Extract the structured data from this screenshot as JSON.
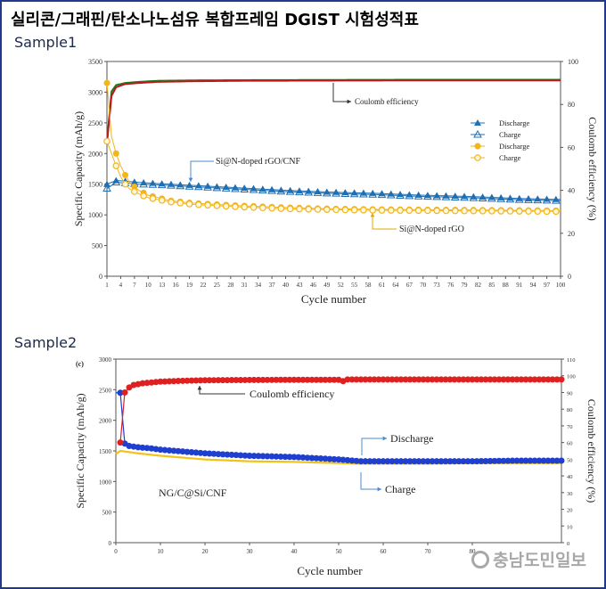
{
  "header": {
    "title": "실리콘/그래핀/탄소나노섬유 복합프레임 DGIST 시험성적표"
  },
  "samples": [
    {
      "label": "Sample1"
    },
    {
      "label": "Sample2"
    }
  ],
  "watermark": {
    "text": "충남도민일보"
  },
  "chart_data": [
    {
      "type": "scatter",
      "title": "",
      "xlabel": "Cycle number",
      "ylabel": "Specific Capacity (mAh/g)",
      "y2label": "Coulomb efficiency (%)",
      "xlim": [
        1,
        100
      ],
      "ylim": [
        0,
        3500
      ],
      "y2lim": [
        0,
        100
      ],
      "x_ticks": [
        "1",
        "4",
        "7",
        "10",
        "13",
        "16",
        "19",
        "22",
        "25",
        "28",
        "31",
        "34",
        "37",
        "40",
        "43",
        "46",
        "49",
        "52",
        "55",
        "58",
        "61",
        "64",
        "67",
        "70",
        "73",
        "76",
        "79",
        "82",
        "85",
        "88",
        "91",
        "94",
        "97",
        "100"
      ],
      "y_ticks": [
        "0",
        "500",
        "1000",
        "1500",
        "2000",
        "2500",
        "3000",
        "3500"
      ],
      "y2_ticks": [
        "0",
        "20",
        "40",
        "60",
        "80",
        "100"
      ],
      "legend": [
        "Discharge",
        "Charge",
        "Discharge",
        "Charge"
      ],
      "legend_position": "right",
      "annotations": [
        "Coulomb efficiency",
        "Si@N-doped rGO/CNF",
        "Si@N-doped rGO"
      ],
      "series": [
        {
          "name": "Discharge",
          "color": "#1f6fb4",
          "marker": "filled-triangle",
          "axis": "left",
          "x": [
            1,
            3,
            5,
            8,
            12,
            20,
            30,
            40,
            50,
            60,
            70,
            80,
            90,
            100
          ],
          "y": [
            1500,
            1560,
            1550,
            1530,
            1510,
            1480,
            1440,
            1400,
            1370,
            1350,
            1320,
            1300,
            1270,
            1250
          ]
        },
        {
          "name": "Charge",
          "color": "#1f6fb4",
          "marker": "open-triangle",
          "axis": "left",
          "x": [
            1,
            3,
            5,
            8,
            12,
            20,
            30,
            40,
            50,
            60,
            70,
            80,
            90,
            100
          ],
          "y": [
            1430,
            1530,
            1520,
            1500,
            1490,
            1460,
            1420,
            1380,
            1350,
            1330,
            1300,
            1280,
            1250,
            1230
          ]
        },
        {
          "name": "Discharge",
          "color": "#f2b51b",
          "marker": "filled-circle",
          "axis": "left",
          "x": [
            1,
            2,
            3,
            4,
            5,
            6,
            8,
            10,
            15,
            20,
            30,
            40,
            50,
            60,
            70,
            80,
            90,
            100
          ],
          "y": [
            3150,
            2280,
            2000,
            1800,
            1650,
            1520,
            1400,
            1320,
            1230,
            1190,
            1150,
            1120,
            1100,
            1090,
            1085,
            1080,
            1075,
            1070
          ]
        },
        {
          "name": "Charge",
          "color": "#f2b51b",
          "marker": "open-circle",
          "axis": "left",
          "x": [
            1,
            2,
            3,
            4,
            5,
            6,
            8,
            10,
            15,
            20,
            30,
            40,
            50,
            60,
            70,
            80,
            90,
            100
          ],
          "y": [
            2200,
            2000,
            1800,
            1620,
            1500,
            1420,
            1340,
            1280,
            1210,
            1170,
            1130,
            1100,
            1085,
            1075,
            1070,
            1065,
            1060,
            1055
          ]
        },
        {
          "name": "",
          "color": "#1a7a1a",
          "axis": "right",
          "x": [
            1,
            2,
            3,
            5,
            8,
            12,
            20,
            30,
            50,
            70,
            100
          ],
          "y": [
            62,
            86,
            89,
            90,
            90.5,
            91,
            91.2,
            91.3,
            91.4,
            91.5,
            91.5
          ]
        },
        {
          "name": "",
          "color": "#c01818",
          "axis": "right",
          "x": [
            1,
            2,
            3,
            5,
            8,
            12,
            20,
            30,
            50,
            70,
            100
          ],
          "y": [
            62,
            84,
            88,
            89.5,
            90,
            90.5,
            90.8,
            91,
            91.1,
            91.2,
            91.2
          ]
        }
      ]
    },
    {
      "type": "scatter",
      "title": "",
      "panel_label": "(c)",
      "xlabel": "Cycle number",
      "ylabel": "Specific Capacity (mAh/g)",
      "y2label": "Coulomb efficiency (%)",
      "xlim": [
        0,
        100
      ],
      "ylim": [
        0,
        3000
      ],
      "y2lim": [
        0,
        110
      ],
      "x_ticks": [
        "0",
        "10",
        "20",
        "30",
        "40",
        "50",
        "60",
        "70",
        "80"
      ],
      "y_ticks": [
        "0",
        "500",
        "1000",
        "1500",
        "2000",
        "2500",
        "3000"
      ],
      "y2_ticks": [
        "0",
        "10",
        "20",
        "30",
        "40",
        "50",
        "60",
        "70",
        "80",
        "90",
        "100",
        "110"
      ],
      "annotations": [
        "Coulomb efficiency",
        "Discharge",
        "Charge",
        "NG/C@Si/CNF"
      ],
      "series": [
        {
          "name": "",
          "color": "#e02020",
          "marker": "filled-circle",
          "axis": "right",
          "x": [
            1,
            2,
            3,
            4,
            6,
            8,
            10,
            15,
            20,
            30,
            40,
            50,
            51,
            52,
            60,
            70,
            80,
            90,
            100
          ],
          "y": [
            60,
            90,
            93,
            94.5,
            95.5,
            96,
            96.5,
            97,
            97.3,
            97.5,
            97.6,
            97.6,
            96.8,
            97.8,
            97.8,
            97.8,
            97.8,
            97.8,
            97.8
          ]
        },
        {
          "name": "Discharge",
          "color": "#1f3fd0",
          "marker": "filled-circle",
          "axis": "left",
          "x": [
            0,
            1,
            2,
            3,
            5,
            8,
            10,
            15,
            20,
            30,
            40,
            50,
            55,
            60,
            70,
            80,
            90,
            100
          ],
          "y": [
            2450,
            2450,
            1620,
            1580,
            1560,
            1540,
            1520,
            1490,
            1460,
            1420,
            1400,
            1360,
            1330,
            1330,
            1330,
            1330,
            1340,
            1340
          ]
        },
        {
          "name": "Charge",
          "color": "#f2c21b",
          "marker": "line",
          "axis": "left",
          "x": [
            0,
            1,
            3,
            5,
            10,
            20,
            30,
            40,
            50,
            55,
            60,
            70,
            80,
            90,
            100
          ],
          "y": [
            1450,
            1500,
            1480,
            1460,
            1420,
            1360,
            1330,
            1320,
            1300,
            1290,
            1290,
            1290,
            1300,
            1300,
            1300
          ]
        }
      ]
    }
  ]
}
